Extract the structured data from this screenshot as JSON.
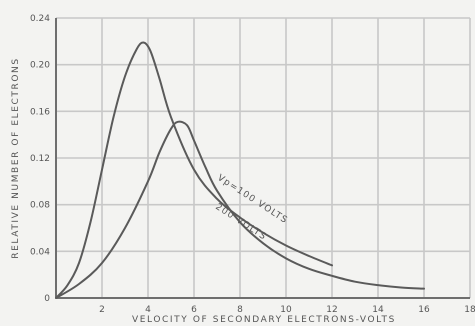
{
  "chart_data": {
    "type": "line",
    "title": "",
    "xlabel": "VELOCITY OF SECONDARY ELECTRONS-VOLTS",
    "ylabel": "RELATIVE NUMBER OF ELECTRONS",
    "xlim": [
      0,
      18
    ],
    "ylim": [
      0,
      0.24
    ],
    "xticks": [
      "0",
      "2",
      "4",
      "6",
      "8",
      "10",
      "12",
      "14",
      "16",
      "18"
    ],
    "yticks": [
      "0",
      "0.04",
      "0.08",
      "0.12",
      "0.16",
      "0.20",
      "0.24"
    ],
    "grid": true,
    "series": [
      {
        "name": "Vp=100 VOLTS",
        "x": [
          0,
          0.5,
          1,
          1.5,
          2,
          2.5,
          3,
          3.5,
          3.8,
          4.1,
          4.5,
          5,
          6,
          7,
          8,
          9,
          10,
          11,
          12
        ],
        "y": [
          0,
          0.011,
          0.03,
          0.065,
          0.11,
          0.155,
          0.19,
          0.213,
          0.219,
          0.212,
          0.188,
          0.155,
          0.11,
          0.085,
          0.069,
          0.056,
          0.045,
          0.036,
          0.028
        ]
      },
      {
        "name": "200 VOLTS",
        "x": [
          0,
          1,
          2,
          3,
          4,
          4.5,
          5,
          5.3,
          5.7,
          6,
          6.5,
          7,
          8,
          9,
          10,
          11,
          12,
          13,
          14,
          15,
          16
        ],
        "y": [
          0,
          0.012,
          0.03,
          0.06,
          0.1,
          0.125,
          0.145,
          0.151,
          0.148,
          0.135,
          0.112,
          0.092,
          0.065,
          0.047,
          0.034,
          0.025,
          0.019,
          0.014,
          0.011,
          0.009,
          0.008
        ]
      }
    ]
  }
}
